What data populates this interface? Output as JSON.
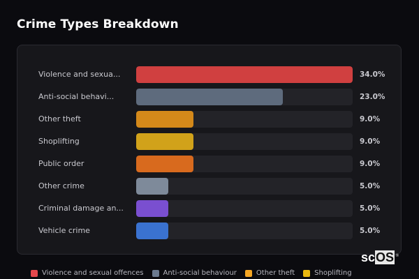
{
  "header": {
    "title": "Crime Types Breakdown"
  },
  "chart_data": {
    "type": "bar",
    "orientation": "horizontal",
    "title": "Crime Types Breakdown",
    "categories": [
      "Violence and sexual offences",
      "Anti-social behaviour",
      "Other theft",
      "Shoplifting",
      "Public order",
      "Other crime",
      "Criminal damage and arson",
      "Vehicle crime"
    ],
    "display_labels": [
      "Violence and sexua...",
      "Anti-social behavi...",
      "Other theft",
      "Shoplifting",
      "Public order",
      "Other crime",
      "Criminal damage an...",
      "Vehicle crime"
    ],
    "values": [
      34.0,
      23.0,
      9.0,
      9.0,
      9.0,
      5.0,
      5.0,
      5.0
    ],
    "value_labels": [
      "34.0%",
      "23.0%",
      "9.0%",
      "9.0%",
      "9.0%",
      "5.0%",
      "5.0%",
      "5.0%"
    ],
    "colors": [
      "#d04040",
      "#5e6b7d",
      "#d4891a",
      "#d1a21a",
      "#d86a1e",
      "#7e8a9a",
      "#7a4fd0",
      "#3a72d0"
    ],
    "unit": "%",
    "xlim": [
      0,
      34
    ],
    "grid": false,
    "legend_position": "bottom"
  },
  "legend": [
    {
      "label": "Violence and sexual offences",
      "color": "#e5484d"
    },
    {
      "label": "Anti-social behaviour",
      "color": "#6b7a8f"
    },
    {
      "label": "Other theft",
      "color": "#f5a623"
    },
    {
      "label": "Shoplifting",
      "color": "#e9b80f"
    }
  ],
  "logo": {
    "text_a": "sc",
    "text_b": "OS",
    "reg": "®"
  }
}
